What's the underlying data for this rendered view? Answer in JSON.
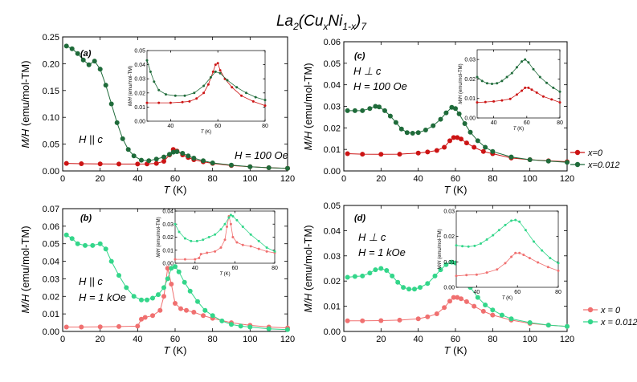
{
  "figure_title": {
    "base": "La",
    "sub1": "2",
    "open": "(Cu",
    "sub2": "x",
    "mid": "Ni",
    "sub3": "1-x",
    "close": ")",
    "sub4": "7"
  },
  "colors": {
    "x0_dark": "#cc1414",
    "x012_dark": "#1f6b3a",
    "x0_light": "#f07070",
    "x012_light": "#33d68a"
  },
  "chart_data": [
    {
      "id": "a",
      "type": "scatter",
      "panel_label": "(a)",
      "annotations": [
        "H || c",
        "H = 100 Oe"
      ],
      "xlabel": "T (K)",
      "ylabel": "M/H (emu/mol-TM)",
      "xlim": [
        0,
        120
      ],
      "ylim": [
        0,
        0.25
      ],
      "xticks": [
        0,
        20,
        40,
        60,
        80,
        100,
        120
      ],
      "yticks": [
        0.0,
        0.05,
        0.1,
        0.15,
        0.2,
        0.25
      ],
      "series": [
        {
          "name": "x=0",
          "color_key": "x0_dark",
          "x": [
            2,
            10,
            20,
            30,
            40,
            45,
            50,
            54,
            57,
            59,
            61,
            64,
            67,
            70,
            75,
            80,
            90,
            100,
            110,
            120
          ],
          "y": [
            0.014,
            0.0135,
            0.013,
            0.0128,
            0.0128,
            0.013,
            0.014,
            0.018,
            0.03,
            0.04,
            0.037,
            0.03,
            0.025,
            0.021,
            0.017,
            0.014,
            0.01,
            0.008,
            0.006,
            0.005
          ]
        },
        {
          "name": "x=0.012",
          "color_key": "x012_dark",
          "x": [
            2,
            5,
            8,
            11,
            14,
            17,
            20,
            23,
            26,
            29,
            32,
            35,
            38,
            42,
            46,
            50,
            54,
            57,
            59,
            61,
            64,
            67,
            70,
            75,
            80,
            90,
            100,
            110,
            120
          ],
          "y": [
            0.233,
            0.228,
            0.219,
            0.207,
            0.198,
            0.205,
            0.19,
            0.16,
            0.125,
            0.09,
            0.06,
            0.04,
            0.028,
            0.02,
            0.019,
            0.022,
            0.026,
            0.031,
            0.035,
            0.036,
            0.033,
            0.028,
            0.024,
            0.019,
            0.015,
            0.011,
            0.008,
            0.006,
            0.005
          ]
        }
      ],
      "inset": {
        "xlabel": "T (K)",
        "ylabel": "M/H (emu/mol-TM)",
        "xlim": [
          30,
          80
        ],
        "ylim": [
          0.0,
          0.05
        ],
        "xticks": [
          40,
          60,
          80
        ],
        "yticks": [
          0.0,
          0.01,
          0.02,
          0.03,
          0.04,
          0.05
        ],
        "series": [
          {
            "name": "x=0",
            "color_key": "x0_dark",
            "x": [
              30,
              35,
              40,
              45,
              48,
              51,
              54,
              56,
              58,
              59,
              60,
              61,
              63,
              66,
              70,
              75,
              80
            ],
            "y": [
              0.013,
              0.013,
              0.013,
              0.0135,
              0.014,
              0.016,
              0.02,
              0.026,
              0.035,
              0.04,
              0.041,
              0.036,
              0.03,
              0.024,
              0.018,
              0.014,
              0.011
            ]
          },
          {
            "name": "x=0.012",
            "color_key": "x012_dark",
            "x": [
              30,
              31.5,
              33,
              35,
              38,
              42,
              46,
              50,
              54,
              57,
              59,
              61,
              64,
              68,
              72,
              76,
              80
            ],
            "y": [
              0.043,
              0.035,
              0.028,
              0.022,
              0.019,
              0.018,
              0.018,
              0.02,
              0.025,
              0.031,
              0.035,
              0.034,
              0.029,
              0.024,
              0.02,
              0.017,
              0.015
            ]
          }
        ]
      }
    },
    {
      "id": "b",
      "type": "scatter",
      "panel_label": "(b)",
      "annotations": [
        "H || c",
        "H = 1 kOe"
      ],
      "xlabel": "T (K)",
      "ylabel": "M/H (emu/mol-TM)",
      "xlim": [
        0,
        120
      ],
      "ylim": [
        0,
        0.07
      ],
      "xticks": [
        0,
        20,
        40,
        60,
        80,
        100,
        120
      ],
      "yticks": [
        0.0,
        0.01,
        0.02,
        0.03,
        0.04,
        0.05,
        0.06,
        0.07
      ],
      "series": [
        {
          "name": "x = 0",
          "color_key": "x0_light",
          "x": [
            2,
            10,
            20,
            30,
            40,
            42,
            44,
            48,
            52,
            54,
            56,
            58,
            60,
            63,
            66,
            70,
            75,
            80,
            90,
            100,
            110,
            120
          ],
          "y": [
            0.0025,
            0.0025,
            0.0026,
            0.0028,
            0.003,
            0.007,
            0.008,
            0.009,
            0.012,
            0.02,
            0.036,
            0.027,
            0.016,
            0.013,
            0.012,
            0.011,
            0.009,
            0.0075,
            0.005,
            0.0035,
            0.0025,
            0.002
          ]
        },
        {
          "name": "x = 0.012",
          "color_key": "x012_light",
          "x": [
            2,
            5,
            8,
            12,
            16,
            20,
            23,
            26,
            30,
            34,
            38,
            42,
            45,
            48,
            51,
            54,
            56,
            58,
            60,
            62,
            65,
            68,
            72,
            76,
            80,
            85,
            90,
            95,
            100,
            110,
            120
          ],
          "y": [
            0.055,
            0.053,
            0.05,
            0.049,
            0.049,
            0.05,
            0.047,
            0.04,
            0.032,
            0.025,
            0.02,
            0.018,
            0.018,
            0.019,
            0.021,
            0.025,
            0.03,
            0.036,
            0.037,
            0.034,
            0.028,
            0.023,
            0.017,
            0.012,
            0.009,
            0.006,
            0.004,
            0.003,
            0.0025,
            0.0015,
            0.001
          ]
        }
      ],
      "inset": {
        "xlabel": "T (K)",
        "ylabel": "M/H (emu/mol-TM)",
        "xlim": [
          30,
          80
        ],
        "ylim": [
          0.0,
          0.04
        ],
        "xticks": [
          40,
          60,
          80
        ],
        "yticks": [
          0.0,
          0.01,
          0.02,
          0.03,
          0.04
        ],
        "series": [
          {
            "name": "x = 0",
            "color_key": "x0_light",
            "x": [
              30,
              35,
              40,
              42,
              43,
              46,
              50,
              53,
              55,
              56,
              57,
              58,
              59,
              61,
              64,
              68,
              72,
              76,
              80
            ],
            "y": [
              0.003,
              0.003,
              0.003,
              0.004,
              0.007,
              0.008,
              0.009,
              0.012,
              0.018,
              0.028,
              0.036,
              0.03,
              0.02,
              0.016,
              0.014,
              0.013,
              0.011,
              0.009,
              0.008
            ]
          },
          {
            "name": "x = 0.012",
            "color_key": "x012_light",
            "x": [
              30,
              32,
              35,
              38,
              41,
              44,
              47,
              50,
              53,
              55,
              57,
              58,
              59,
              61,
              64,
              68,
              72,
              76,
              80
            ],
            "y": [
              0.03,
              0.024,
              0.019,
              0.017,
              0.017,
              0.018,
              0.02,
              0.022,
              0.026,
              0.03,
              0.035,
              0.037,
              0.036,
              0.033,
              0.028,
              0.022,
              0.017,
              0.012,
              0.009
            ]
          }
        ]
      }
    },
    {
      "id": "c",
      "type": "scatter",
      "panel_label": "(c)",
      "annotations": [
        "H ⊥ c",
        "H = 100 Oe"
      ],
      "xlabel": "T (K)",
      "ylabel": "M/H (emu/mol-TM)",
      "xlim": [
        0,
        120
      ],
      "ylim": [
        0,
        0.06
      ],
      "xticks": [
        0,
        20,
        40,
        60,
        80,
        100,
        120
      ],
      "yticks": [
        0.0,
        0.01,
        0.02,
        0.03,
        0.04,
        0.05,
        0.06
      ],
      "series": [
        {
          "name": "x=0",
          "color_key": "x0_dark",
          "x": [
            2,
            10,
            20,
            30,
            40,
            45,
            50,
            54,
            57,
            59,
            61,
            63,
            66,
            70,
            75,
            80,
            90,
            100,
            110,
            120
          ],
          "y": [
            0.008,
            0.0078,
            0.0077,
            0.0078,
            0.0083,
            0.0088,
            0.0095,
            0.011,
            0.014,
            0.0155,
            0.0155,
            0.0148,
            0.013,
            0.011,
            0.009,
            0.008,
            0.006,
            0.0052,
            0.0047,
            0.0043
          ]
        },
        {
          "name": "x=0.012",
          "color_key": "x012_dark",
          "x": [
            2,
            6,
            10,
            14,
            17,
            19,
            22,
            25,
            28,
            31,
            34,
            37,
            40,
            44,
            48,
            52,
            55,
            58,
            60,
            62,
            65,
            68,
            72,
            76,
            80,
            90,
            100,
            110,
            120
          ],
          "y": [
            0.028,
            0.028,
            0.028,
            0.029,
            0.03,
            0.0297,
            0.028,
            0.0255,
            0.0225,
            0.0195,
            0.0178,
            0.0175,
            0.0178,
            0.019,
            0.021,
            0.024,
            0.027,
            0.0295,
            0.029,
            0.0265,
            0.022,
            0.018,
            0.014,
            0.011,
            0.009,
            0.0065,
            0.0052,
            0.0046,
            0.004
          ]
        }
      ],
      "inset": {
        "xlabel": "T (K)",
        "ylabel": "M/H (emu/mol-TM)",
        "xlim": [
          30,
          80
        ],
        "ylim": [
          0.0,
          0.035
        ],
        "xticks": [
          40,
          60,
          80
        ],
        "yticks": [
          0.0,
          0.01,
          0.02,
          0.03
        ],
        "series": [
          {
            "name": "x=0",
            "color_key": "x0_dark",
            "x": [
              30,
              35,
              40,
              45,
              50,
              54,
              57,
              59,
              61,
              63,
              66,
              70,
              75,
              80
            ],
            "y": [
              0.008,
              0.0082,
              0.0085,
              0.009,
              0.0098,
              0.012,
              0.014,
              0.0155,
              0.0155,
              0.0145,
              0.013,
              0.011,
              0.0095,
              0.008
            ]
          },
          {
            "name": "x=0.012",
            "color_key": "x012_dark",
            "x": [
              30,
              33,
              36,
              39,
              42,
              45,
              48,
              51,
              54,
              57,
              59,
              61,
              64,
              68,
              72,
              76,
              80
            ],
            "y": [
              0.021,
              0.019,
              0.0178,
              0.0175,
              0.0178,
              0.019,
              0.021,
              0.023,
              0.026,
              0.029,
              0.03,
              0.0285,
              0.025,
              0.021,
              0.018,
              0.0155,
              0.0135
            ]
          }
        ]
      }
    },
    {
      "id": "d",
      "type": "scatter",
      "panel_label": "(d)",
      "annotations": [
        "H ⊥ c",
        "H = 1 kOe"
      ],
      "xlabel": "T (K)",
      "ylabel": "M/H (emu/mol-TM)",
      "xlim": [
        0,
        120
      ],
      "ylim": [
        0,
        0.05
      ],
      "xticks": [
        0,
        20,
        40,
        60,
        80,
        100,
        120
      ],
      "yticks": [
        0.0,
        0.01,
        0.02,
        0.03,
        0.04,
        0.05
      ],
      "series": [
        {
          "name": "x = 0",
          "color_key": "x0_light",
          "x": [
            2,
            10,
            20,
            30,
            40,
            45,
            50,
            54,
            57,
            59,
            61,
            63,
            66,
            70,
            75,
            80,
            90,
            100,
            110,
            120
          ],
          "y": [
            0.0042,
            0.0042,
            0.0043,
            0.0045,
            0.005,
            0.0058,
            0.007,
            0.0095,
            0.012,
            0.0135,
            0.0135,
            0.013,
            0.0118,
            0.01,
            0.008,
            0.0065,
            0.0045,
            0.0032,
            0.0025,
            0.002
          ]
        },
        {
          "name": "x = 0.012",
          "color_key": "x012_light",
          "x": [
            2,
            6,
            10,
            14,
            17,
            20,
            23,
            26,
            29,
            32,
            35,
            38,
            41,
            45,
            49,
            52,
            55,
            58,
            60,
            62,
            65,
            68,
            72,
            76,
            80,
            85,
            90,
            100,
            110,
            120
          ],
          "y": [
            0.0215,
            0.0218,
            0.022,
            0.0232,
            0.0245,
            0.025,
            0.0242,
            0.022,
            0.0195,
            0.0175,
            0.0168,
            0.0168,
            0.0175,
            0.019,
            0.022,
            0.0245,
            0.0265,
            0.0275,
            0.0272,
            0.0255,
            0.021,
            0.0175,
            0.0135,
            0.0105,
            0.0085,
            0.0065,
            0.005,
            0.0035,
            0.0025,
            0.002
          ]
        }
      ],
      "inset": {
        "xlabel": "T (K)",
        "ylabel": "M/H (emu/mol-TM)",
        "xlim": [
          30,
          80
        ],
        "ylim": [
          0.0,
          0.03
        ],
        "xticks": [
          40,
          60,
          80
        ],
        "yticks": [
          0.0,
          0.01,
          0.02,
          0.03
        ],
        "series": [
          {
            "name": "x = 0",
            "color_key": "x0_light",
            "x": [
              30,
              35,
              40,
              45,
              50,
              54,
              57,
              59,
              61,
              63,
              66,
              70,
              75,
              80
            ],
            "y": [
              0.0045,
              0.0048,
              0.005,
              0.0058,
              0.007,
              0.0095,
              0.012,
              0.0135,
              0.0135,
              0.0128,
              0.0115,
              0.0098,
              0.008,
              0.0065
            ]
          },
          {
            "name": "x = 0.012",
            "color_key": "x012_light",
            "x": [
              30,
              33,
              36,
              39,
              42,
              45,
              48,
              51,
              54,
              57,
              59,
              61,
              64,
              68,
              72,
              76,
              80
            ],
            "y": [
              0.0165,
              0.0162,
              0.016,
              0.0163,
              0.0172,
              0.0188,
              0.0205,
              0.0225,
              0.0245,
              0.0262,
              0.0265,
              0.0258,
              0.0225,
              0.018,
              0.0145,
              0.0115,
              0.0095
            ]
          }
        ]
      }
    }
  ],
  "legends": [
    {
      "id": "top",
      "items": [
        {
          "label": "x=0",
          "color_key": "x0_dark"
        },
        {
          "label": "x=0.012",
          "color_key": "x012_dark"
        }
      ]
    },
    {
      "id": "bottom",
      "items": [
        {
          "label": "x = 0",
          "color_key": "x0_light"
        },
        {
          "label": "x = 0.012",
          "color_key": "x012_light"
        }
      ]
    }
  ]
}
